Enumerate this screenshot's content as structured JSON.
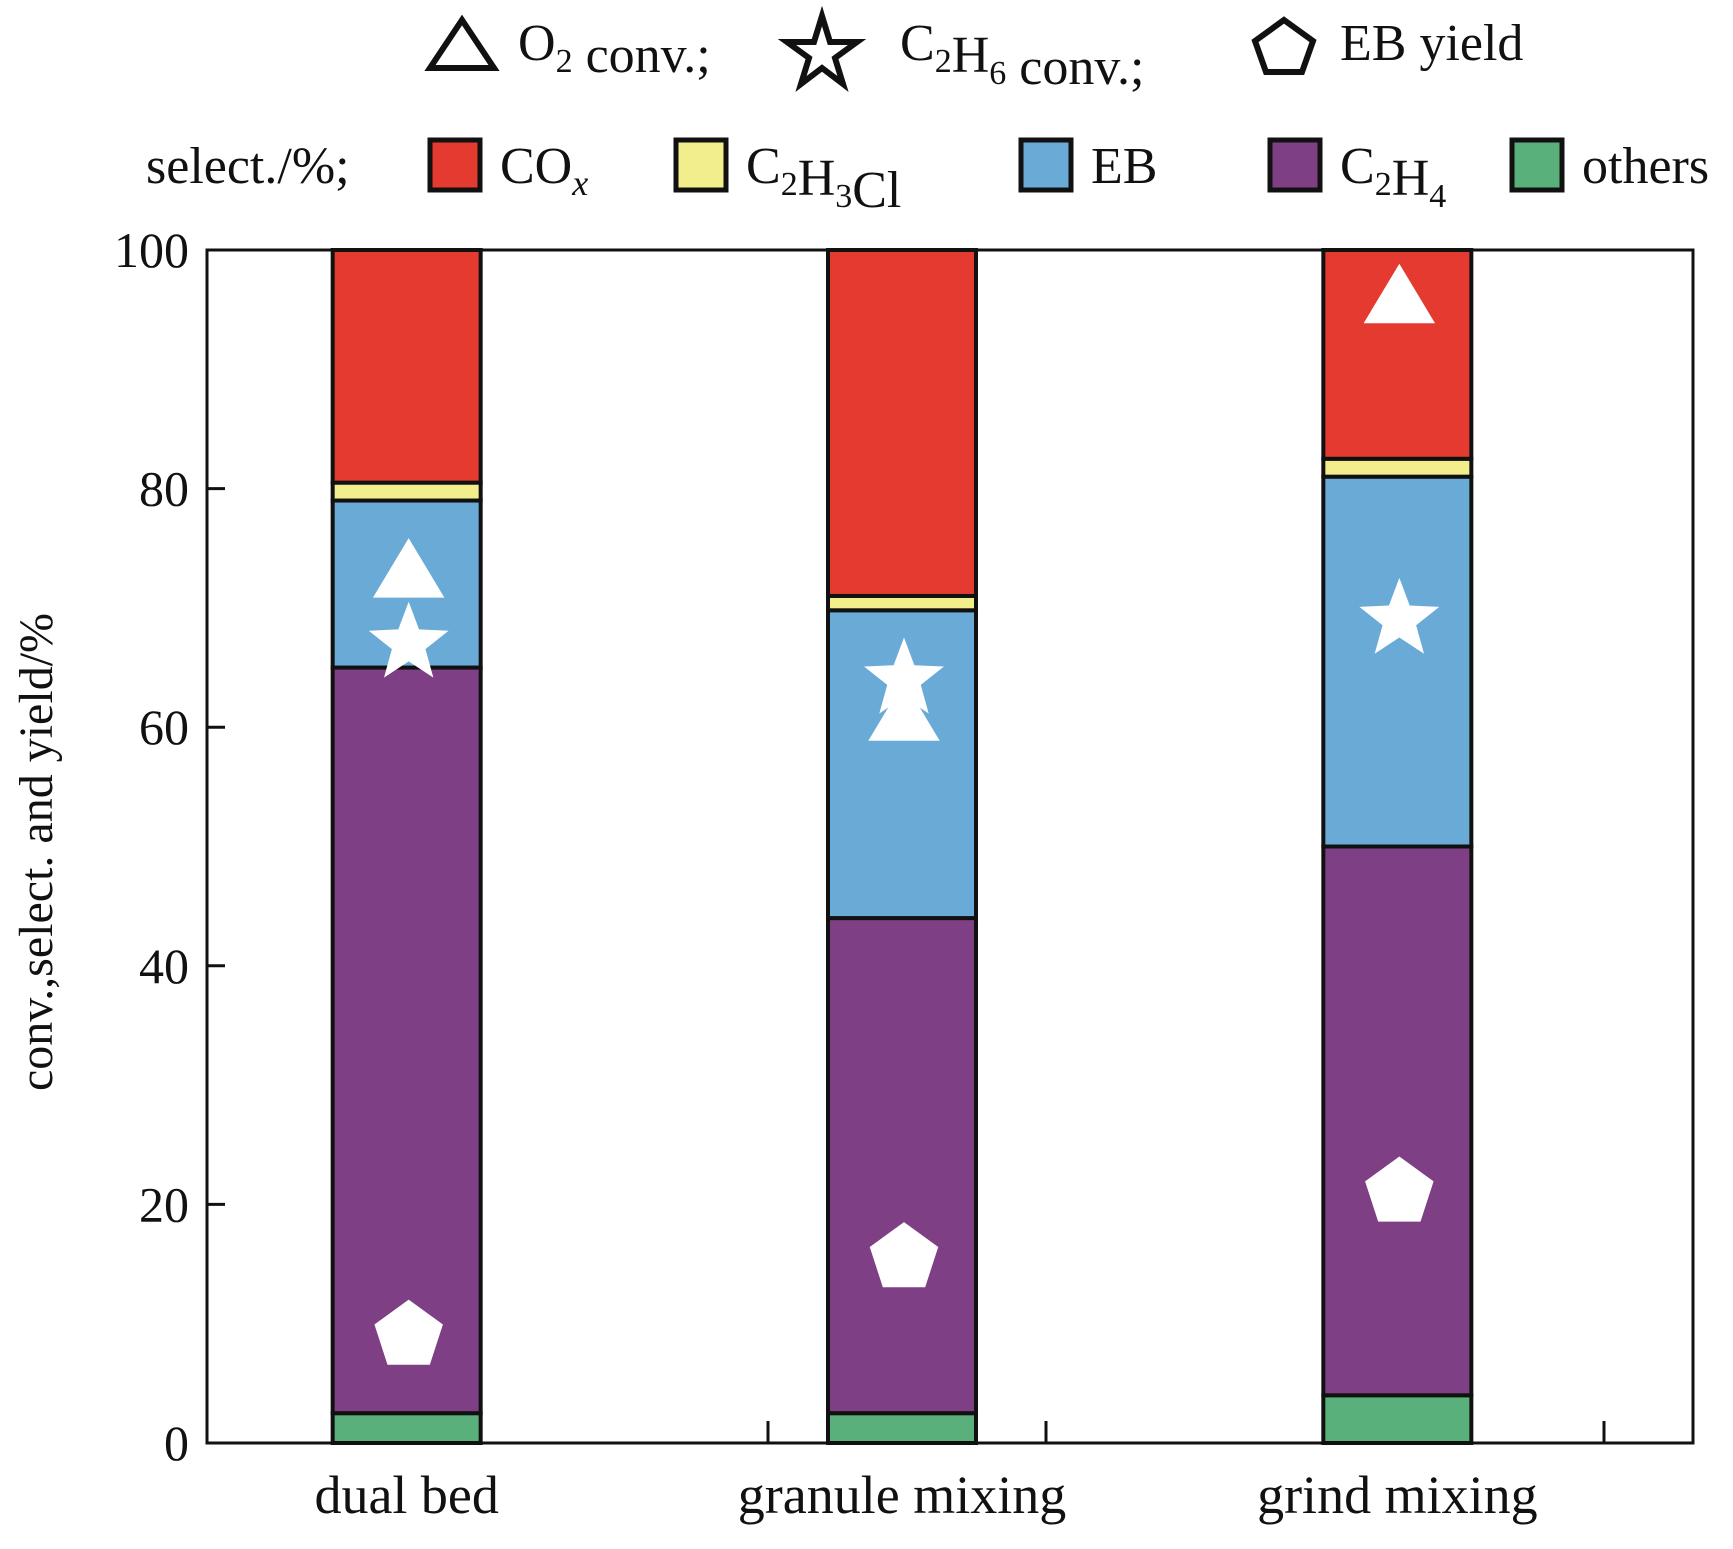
{
  "chart_data": {
    "type": "bar",
    "stacked": true,
    "ylabel": "conv.,select. and yield/%",
    "ylim": [
      0,
      100
    ],
    "yticks": [
      0,
      20,
      40,
      60,
      80,
      100
    ],
    "categories": [
      "dual bed",
      "granule mixing",
      "grind mixing"
    ],
    "legend_prefix": "select./%;",
    "series": [
      {
        "name": "others",
        "color": "#5ab07a",
        "values": [
          2.5,
          2.5,
          4.0
        ]
      },
      {
        "name": "C2H4",
        "color": "#7f3f85",
        "values": [
          62.5,
          41.5,
          46.0
        ]
      },
      {
        "name": "EB",
        "color": "#6aaad6",
        "values": [
          14.0,
          25.8,
          31.0
        ]
      },
      {
        "name": "C2H3Cl",
        "color": "#f3ee8c",
        "values": [
          1.5,
          1.2,
          1.5
        ]
      },
      {
        "name": "COx",
        "color": "#e43a2f",
        "values": [
          19.5,
          29.0,
          17.5
        ]
      }
    ],
    "markers": [
      {
        "name": "O2 conv.",
        "shape": "triangle",
        "values": [
          73.0,
          61.0,
          96.0
        ]
      },
      {
        "name": "C2H6 conv.",
        "shape": "star",
        "values": [
          67.0,
          64.0,
          69.0
        ]
      },
      {
        "name": "EB yield",
        "shape": "pentagon",
        "values": [
          9.0,
          15.5,
          21.0
        ]
      }
    ]
  }
}
